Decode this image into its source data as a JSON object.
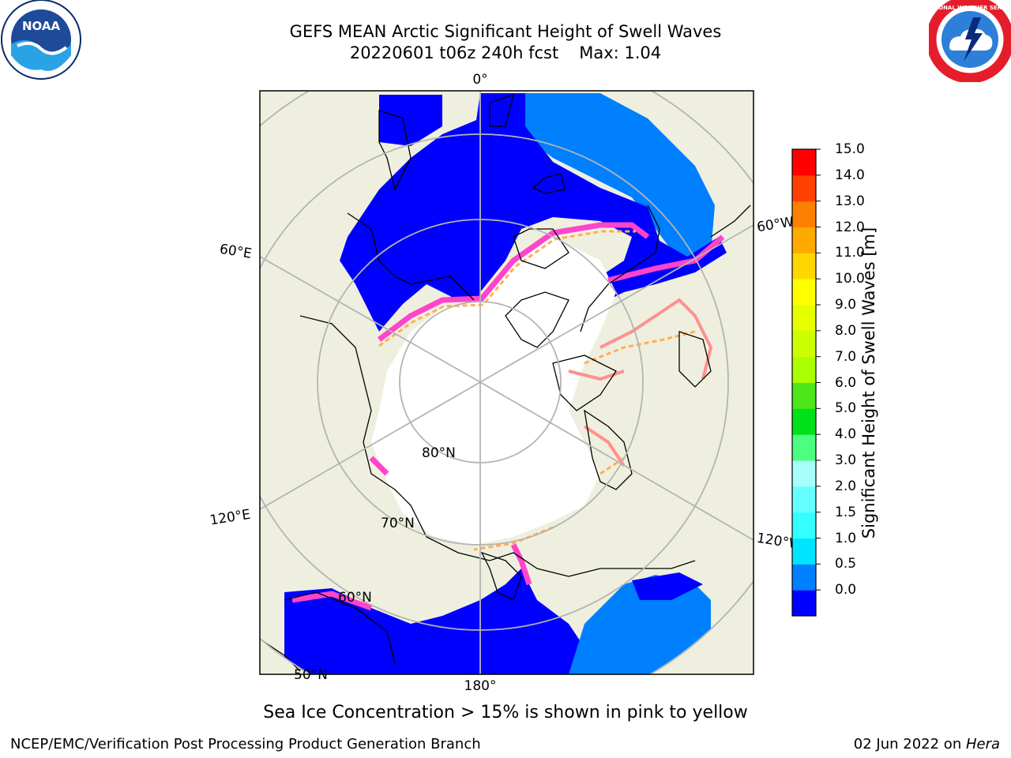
{
  "title": {
    "line1": "GEFS MEAN Arctic Significant Height of Swell Waves",
    "line2_run": "20220601 t06z 240h fcst",
    "line2_max": "Max: 1.04"
  },
  "map": {
    "projection": "north polar stereographic",
    "center_latitude": 90,
    "top_meridian_label": "0°",
    "bottom_meridian_label": "180°",
    "meridian_labels": [
      "60°E",
      "120°E",
      "60°W",
      "120°W"
    ],
    "parallel_labels": [
      "80°N",
      "70°N",
      "60°N",
      "50°N"
    ],
    "colors": {
      "land": "#efefdf",
      "ocean_swell_low": "#0000ff",
      "ocean_swell_mid": "#0080ff",
      "sea_ice": "#ffffff",
      "ice_edge_pink": "#ff44cc",
      "ice_edge_orange": "#ffb050",
      "gridline": "#b4b4b4",
      "coastline": "#000000"
    }
  },
  "colorbar": {
    "label": "Significant Height of Swell Waves [m]",
    "levels": [
      0.0,
      0.5,
      1.0,
      1.5,
      2.0,
      3.0,
      4.0,
      5.0,
      6.0,
      7.0,
      8.0,
      9.0,
      10.0,
      11.0,
      12.0,
      13.0,
      14.0,
      15.0
    ],
    "tick_labels": [
      "15.0",
      "14.0",
      "13.0",
      "12.0",
      "11.0",
      "10.0",
      "9.0",
      "8.0",
      "7.0",
      "6.0",
      "5.0",
      "4.0",
      "3.0",
      "2.0",
      "1.5",
      "1.0",
      "0.5",
      "0.0"
    ],
    "colors": [
      "#0000ff",
      "#0080ff",
      "#00e5ff",
      "#33ffff",
      "#66ffff",
      "#a6fffa",
      "#4dff80",
      "#00e11a",
      "#4ce61a",
      "#aaff00",
      "#ccff00",
      "#e5ff00",
      "#ffff00",
      "#ffd700",
      "#ffaa00",
      "#ff8000",
      "#ff4000",
      "#ff0000"
    ]
  },
  "caption": "Sea Ice Concentration > 15% is shown in pink to yellow",
  "footer": {
    "left": "NCEP/EMC/Verification Post Processing Product Generation Branch",
    "right_date": "02 Jun 2022 on ",
    "right_host": "Hera"
  },
  "logos": {
    "noaa_text": "NOAA",
    "nws_text": "NATIONAL WEATHER SERVICE"
  }
}
